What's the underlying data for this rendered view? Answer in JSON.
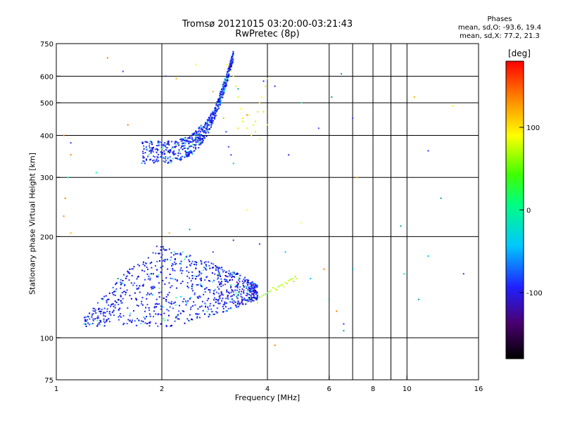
{
  "title_line1": "Tromsø 20121015 03:20:00-03:21:43",
  "title_line2": "RwPretec (8p)",
  "stats": {
    "heading": "Phases",
    "line_o": "mean, sd,O: -93.6, 19.4",
    "line_x": "mean, sd,X:  77.2, 21.3"
  },
  "colorbar": {
    "title": "[deg]",
    "tick_labels": [
      "100",
      "0",
      "-100"
    ],
    "tick_values": [
      100,
      0,
      -100
    ],
    "range": [
      -180,
      180
    ]
  },
  "chart_data": {
    "type": "scatter",
    "xlabel": "Frequency [MHz]",
    "ylabel": "Stationary phase Virtual Height [km]",
    "x_scale": "log",
    "y_scale": "log",
    "xlim": [
      1,
      16
    ],
    "ylim": [
      75,
      750
    ],
    "x_ticks": [
      1,
      2,
      4,
      6,
      8,
      10,
      16
    ],
    "x_tick_labels": [
      "1",
      "2",
      "4",
      "6",
      "8",
      "10",
      "16"
    ],
    "x_gridlines": [
      2,
      4,
      6,
      7,
      8,
      9,
      10
    ],
    "y_ticks": [
      75,
      100,
      200,
      300,
      400,
      500,
      600,
      750
    ],
    "y_tick_labels": [
      "75",
      "100",
      "200",
      "300",
      "400",
      "500",
      "600",
      "750"
    ],
    "y_gridlines": [
      100,
      200,
      300,
      400,
      500,
      600
    ],
    "grid": true,
    "color_by": "phase [deg]",
    "series": [
      {
        "values": [
          [
            1.05,
            400
          ],
          [
            1.1,
            380
          ],
          [
            1.1,
            350
          ],
          [
            1.08,
            300
          ],
          [
            1.06,
            260
          ],
          [
            1.05,
            230
          ],
          [
            1.1,
            205
          ],
          [
            1.3,
            310
          ],
          [
            1.4,
            680
          ],
          [
            1.55,
            620
          ],
          [
            1.6,
            430
          ],
          [
            1.9,
            120
          ],
          [
            2.05,
            600
          ],
          [
            2.2,
            590
          ],
          [
            2.5,
            650
          ],
          [
            2.8,
            540
          ],
          [
            3.0,
            450
          ],
          [
            3.05,
            410
          ],
          [
            3.1,
            370
          ],
          [
            3.15,
            350
          ],
          [
            3.2,
            330
          ],
          [
            3.3,
            550
          ],
          [
            3.5,
            460
          ],
          [
            3.9,
            580
          ],
          [
            4.2,
            560
          ],
          [
            4.6,
            350
          ],
          [
            5.0,
            500
          ],
          [
            5.6,
            420
          ],
          [
            6.1,
            520
          ],
          [
            6.5,
            610
          ],
          [
            7.0,
            450
          ],
          [
            7.2,
            300
          ],
          [
            10.5,
            520
          ],
          [
            11.5,
            360
          ],
          [
            12.5,
            260
          ],
          [
            13.5,
            490
          ],
          [
            1.2,
            110
          ],
          [
            1.5,
            150
          ],
          [
            1.7,
            125
          ],
          [
            2.1,
            205
          ],
          [
            2.4,
            210
          ],
          [
            2.5,
            150
          ],
          [
            2.8,
            180
          ],
          [
            3.2,
            195
          ],
          [
            3.5,
            240
          ],
          [
            3.8,
            190
          ],
          [
            4.2,
            95
          ],
          [
            4.5,
            180
          ],
          [
            5.0,
            220
          ],
          [
            5.3,
            150
          ],
          [
            5.8,
            160
          ],
          [
            6.0,
            130
          ],
          [
            6.3,
            120
          ],
          [
            6.6,
            110
          ],
          [
            6.6,
            105
          ],
          [
            7.0,
            160
          ],
          [
            9.6,
            215
          ],
          [
            9.8,
            155
          ],
          [
            10.8,
            130
          ],
          [
            11.5,
            175
          ],
          [
            14.5,
            155
          ]
        ]
      },
      {
        "values": [
          [
            3.05,
            650
          ],
          [
            3.1,
            640
          ],
          [
            3.15,
            620
          ],
          [
            3.2,
            600
          ],
          [
            3.25,
            560
          ],
          [
            3.3,
            520
          ],
          [
            3.35,
            480
          ],
          [
            3.4,
            440
          ],
          [
            3.5,
            420
          ],
          [
            3.6,
            400
          ],
          [
            3.7,
            440
          ],
          [
            3.75,
            470
          ],
          [
            3.8,
            500
          ],
          [
            3.85,
            520
          ],
          [
            3.9,
            470
          ],
          [
            4.0,
            430
          ],
          [
            3.3,
            420
          ],
          [
            3.4,
            450
          ],
          [
            3.55,
            460
          ],
          [
            3.65,
            430
          ],
          [
            3.7,
            410
          ],
          [
            3.8,
            390
          ],
          [
            3.95,
            560
          ],
          [
            4.0,
            590
          ]
        ]
      },
      {
        "values": [
          [
            3.7,
            130
          ],
          [
            3.8,
            132
          ],
          [
            3.9,
            134
          ],
          [
            4.0,
            136
          ],
          [
            4.1,
            138
          ],
          [
            4.2,
            140
          ],
          [
            4.3,
            142
          ],
          [
            4.4,
            144
          ],
          [
            4.5,
            146
          ],
          [
            4.6,
            148
          ],
          [
            4.7,
            150
          ],
          [
            4.8,
            152
          ],
          [
            3.6,
            131
          ],
          [
            3.65,
            129
          ],
          [
            3.85,
            133
          ],
          [
            3.95,
            135
          ],
          [
            4.05,
            137
          ],
          [
            4.25,
            139
          ],
          [
            4.35,
            143
          ],
          [
            4.55,
            145
          ],
          [
            4.75,
            147
          ],
          [
            4.85,
            150
          ],
          [
            3.75,
            127
          ],
          [
            4.15,
            141
          ],
          [
            4.45,
            142
          ],
          [
            4.65,
            149
          ]
        ]
      }
    ]
  }
}
